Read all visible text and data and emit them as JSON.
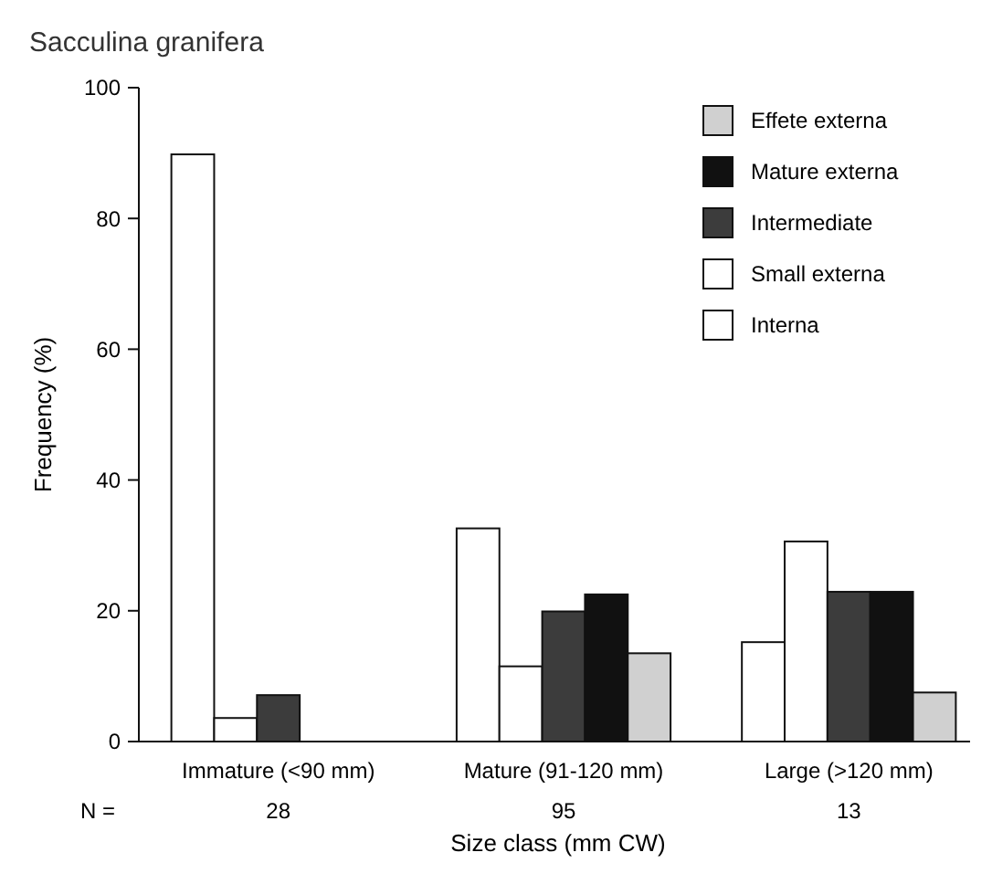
{
  "chart_data": {
    "type": "bar",
    "title": "Sacculina granifera",
    "xlabel": "Size class (mm CW)",
    "ylabel": "Frequency (%)",
    "categories": [
      "Immature (<90 mm)",
      "Mature (91-120 mm)",
      "Large (>120 mm)"
    ],
    "series": [
      {
        "name": "Interna",
        "color": "#ffffff",
        "values": [
          89.8,
          32.6,
          15.2
        ]
      },
      {
        "name": "Small externa",
        "color": "#ffffff",
        "values": [
          3.6,
          11.5,
          30.6
        ]
      },
      {
        "name": "Intermediate",
        "color": "#3c3c3c",
        "values": [
          7.1,
          19.9,
          22.9
        ]
      },
      {
        "name": "Mature externa",
        "color": "#111111",
        "values": [
          null,
          22.5,
          22.9
        ]
      },
      {
        "name": "Effete externa",
        "color": "#d0d0d0",
        "values": [
          null,
          13.5,
          7.5
        ]
      }
    ],
    "ylim": [
      0,
      100
    ],
    "yticks": [
      0,
      20,
      40,
      60,
      80,
      100
    ],
    "grid": false,
    "legend": "top right",
    "annotations": [
      "N =",
      "28",
      "95",
      "13"
    ]
  }
}
